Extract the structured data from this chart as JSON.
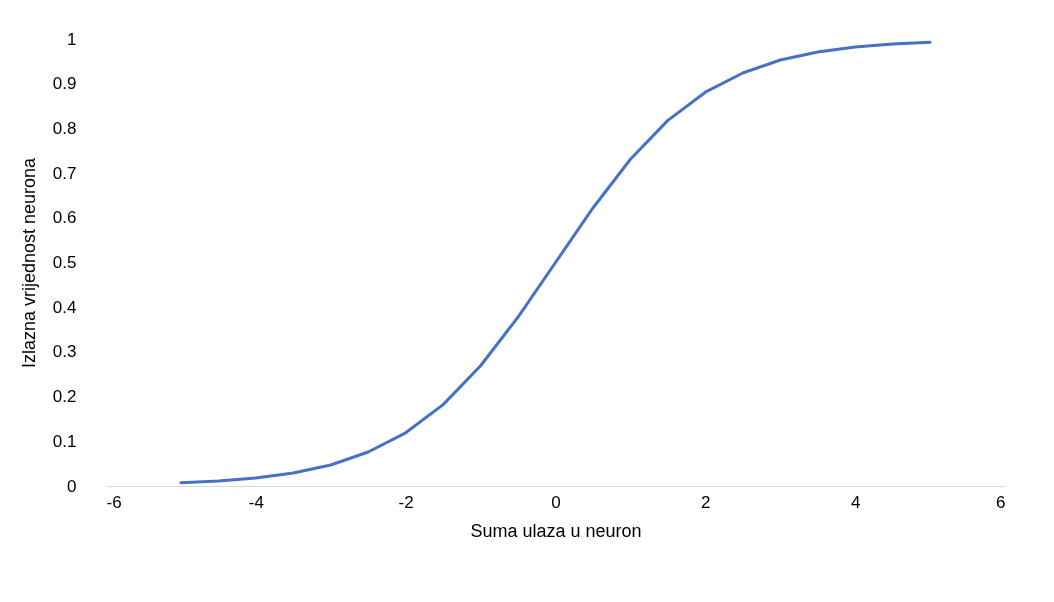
{
  "chart_data": {
    "type": "line",
    "xlabel": "Suma ulaza u neuron",
    "ylabel": "Izlazna vrijednost neurona",
    "x": [
      -5,
      -4.5,
      -4,
      -3.5,
      -3,
      -2.5,
      -2,
      -1.5,
      -1,
      -0.5,
      0,
      0.5,
      1,
      1.5,
      2,
      2.5,
      3,
      3.5,
      4,
      4.5,
      5
    ],
    "series": [
      {
        "color": "#4472c4",
        "values": [
          0.007,
          0.011,
          0.018,
          0.029,
          0.047,
          0.076,
          0.119,
          0.182,
          0.269,
          0.378,
          0.5,
          0.622,
          0.731,
          0.818,
          0.881,
          0.924,
          0.953,
          0.971,
          0.982,
          0.989,
          0.993
        ]
      }
    ],
    "xlim": [
      -6,
      6
    ],
    "xticks": [
      -6,
      -4,
      -2,
      0,
      2,
      4,
      6
    ],
    "ylim": [
      0,
      1
    ],
    "yticks": [
      0,
      0.1,
      0.2,
      0.3,
      0.4,
      0.5,
      0.6,
      0.7,
      0.8,
      0.9,
      1
    ],
    "grid": false,
    "marker": "none",
    "line_style": "solid"
  }
}
